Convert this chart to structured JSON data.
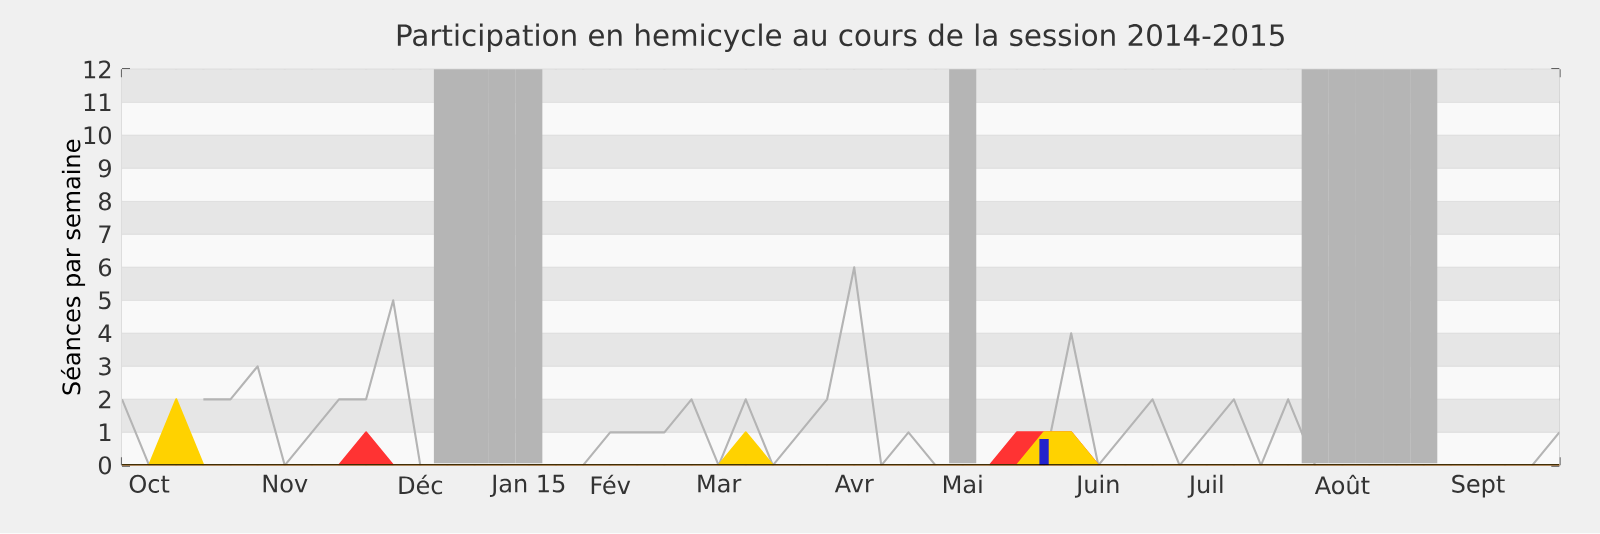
{
  "chart_data": {
    "type": "line",
    "title": "Participation en hemicycle au cours de la session 2014-2015",
    "ylabel": "Séances par semaine",
    "categories": [
      null,
      "Oct",
      null,
      null,
      null,
      null,
      "Nov",
      null,
      null,
      null,
      null,
      "Déc",
      null,
      null,
      null,
      "Jan 15",
      null,
      null,
      "Fév",
      null,
      null,
      null,
      "Mar",
      null,
      null,
      null,
      null,
      "Avr",
      null,
      null,
      null,
      "Mai",
      null,
      null,
      null,
      null,
      "Juin",
      null,
      null,
      null,
      "Juil",
      null,
      null,
      null,
      null,
      "Août",
      null,
      null,
      null,
      null,
      "Sept",
      null,
      null,
      null
    ],
    "ylim": [
      0,
      12
    ],
    "yticks": [
      0,
      1,
      2,
      3,
      4,
      5,
      6,
      7,
      8,
      9,
      10,
      11,
      12
    ],
    "grid": "y",
    "series": [
      {
        "color": "#b4b4b4",
        "values": [
          2,
          0,
          null,
          2,
          2,
          3,
          0,
          1,
          2,
          2,
          5,
          0,
          null,
          null,
          null,
          null,
          null,
          0,
          1,
          1,
          1,
          2,
          0,
          2,
          0,
          1,
          2,
          6,
          0,
          1,
          0,
          null,
          0,
          0,
          0,
          4,
          0,
          1,
          2,
          0,
          1,
          2,
          0,
          2,
          0,
          null,
          null,
          null,
          null,
          null,
          null,
          null,
          0,
          1
        ]
      },
      {
        "type": "area",
        "color": "#ff3333",
        "values": [
          0,
          0,
          0,
          0,
          0,
          0,
          0,
          0,
          0,
          1,
          0,
          0,
          0,
          0,
          0,
          0,
          0,
          0,
          0,
          0,
          0,
          0,
          0,
          0,
          0,
          0,
          0,
          0,
          0,
          0,
          0,
          0,
          0,
          1,
          1,
          1,
          0,
          0,
          0,
          0,
          0,
          0,
          0,
          0,
          0,
          0,
          0,
          0,
          0,
          0,
          0,
          0,
          0,
          0
        ]
      },
      {
        "type": "area",
        "color": "#ffd200",
        "values": [
          0,
          0,
          2,
          0,
          0,
          0,
          0,
          0,
          0,
          0,
          0,
          0,
          0,
          0,
          0,
          0,
          0,
          0,
          0,
          0,
          0,
          0,
          0,
          1,
          0,
          0,
          0,
          0,
          0,
          0,
          0,
          0,
          0,
          0,
          1,
          1,
          0,
          0,
          0,
          0,
          0,
          0,
          0,
          0,
          0,
          0,
          0,
          0,
          0,
          0,
          0,
          0,
          0,
          0
        ]
      },
      {
        "type": "bar",
        "color": "#2222cc",
        "values": [
          null,
          null,
          null,
          null,
          null,
          null,
          null,
          null,
          null,
          null,
          null,
          null,
          null,
          null,
          null,
          null,
          null,
          null,
          null,
          null,
          null,
          null,
          null,
          null,
          null,
          null,
          null,
          null,
          null,
          null,
          null,
          null,
          null,
          null,
          0.8,
          null,
          null,
          null,
          null,
          null,
          null,
          null,
          null,
          null,
          null,
          null,
          null,
          null,
          null,
          null,
          null,
          null,
          null,
          null
        ]
      }
    ]
  }
}
